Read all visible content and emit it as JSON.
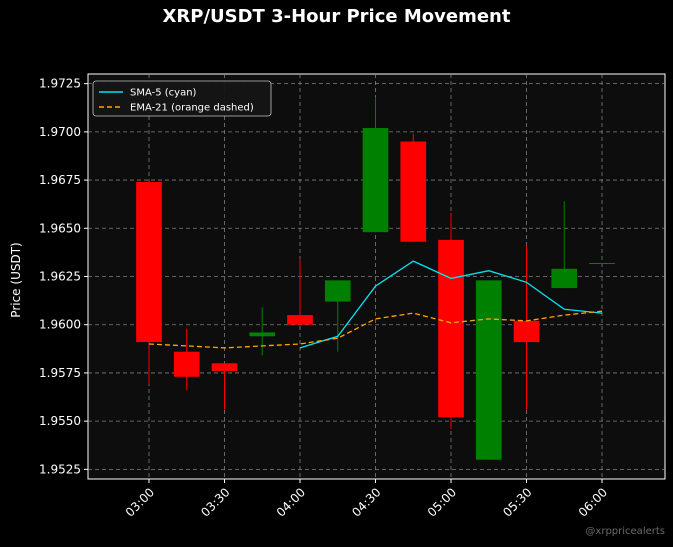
{
  "chart_data": {
    "type": "candlestick",
    "title": "XRP/USDT 3-Hour Price Movement",
    "xlabel": "",
    "ylabel": "Price (USDT)",
    "ylim": [
      1.952,
      1.973
    ],
    "y_ticks": [
      "1.9525",
      "1.9550",
      "1.9575",
      "1.9600",
      "1.9625",
      "1.9650",
      "1.9675",
      "1.9700",
      "1.9725"
    ],
    "x_ticks": [
      "03:00",
      "03:30",
      "04:00",
      "04:30",
      "05:00",
      "05:30",
      "06:00"
    ],
    "grid": true,
    "legend_position": "top-left",
    "candles": [
      {
        "time": "03:00",
        "open": 1.9674,
        "high": 1.9674,
        "low": 1.9569,
        "close": 1.9591
      },
      {
        "time": "03:15",
        "open": 1.9586,
        "high": 1.9598,
        "low": 1.9566,
        "close": 1.9573
      },
      {
        "time": "03:30",
        "open": 1.958,
        "high": 1.958,
        "low": 1.9556,
        "close": 1.9576
      },
      {
        "time": "03:45",
        "open": 1.9594,
        "high": 1.9609,
        "low": 1.9584,
        "close": 1.9596
      },
      {
        "time": "04:00",
        "open": 1.9605,
        "high": 1.9634,
        "low": 1.96,
        "close": 1.96
      },
      {
        "time": "04:15",
        "open": 1.9612,
        "high": 1.9623,
        "low": 1.9586,
        "close": 1.9623
      },
      {
        "time": "04:30",
        "open": 1.9648,
        "high": 1.9718,
        "low": 1.9648,
        "close": 1.9702
      },
      {
        "time": "04:45",
        "open": 1.9695,
        "high": 1.9699,
        "low": 1.9643,
        "close": 1.9643
      },
      {
        "time": "05:00",
        "open": 1.9644,
        "high": 1.9658,
        "low": 1.9546,
        "close": 1.9552
      },
      {
        "time": "05:15",
        "open": 1.953,
        "high": 1.9623,
        "low": 1.953,
        "close": 1.9623
      },
      {
        "time": "05:30",
        "open": 1.9602,
        "high": 1.9641,
        "low": 1.9556,
        "close": 1.9591
      },
      {
        "time": "05:45",
        "open": 1.9619,
        "high": 1.9664,
        "low": 1.9619,
        "close": 1.9629
      },
      {
        "time": "06:00",
        "open": 1.9632,
        "high": 1.9632,
        "low": 1.9632,
        "close": 1.9632
      }
    ],
    "series": [
      {
        "name": "SMA-5 (cyan)",
        "color": "#00e5ee",
        "style": "solid",
        "times": [
          "04:00",
          "04:15",
          "04:30",
          "04:45",
          "05:00",
          "05:15",
          "05:30",
          "05:45",
          "06:00"
        ],
        "values": [
          1.9588,
          1.9594,
          1.962,
          1.9633,
          1.9624,
          1.9628,
          1.9622,
          1.9608,
          1.9606
        ]
      },
      {
        "name": "EMA-21 (orange dashed)",
        "color": "#ffa500",
        "style": "dashed",
        "times": [
          "03:00",
          "03:15",
          "03:30",
          "03:45",
          "04:00",
          "04:15",
          "04:30",
          "04:45",
          "05:00",
          "05:15",
          "05:30",
          "05:45",
          "06:00"
        ],
        "values": [
          1.959,
          1.9589,
          1.9588,
          1.9589,
          1.959,
          1.9593,
          1.9603,
          1.9606,
          1.9601,
          1.9603,
          1.9602,
          1.9605,
          1.9607
        ]
      }
    ],
    "up_color": "#008000",
    "down_color": "#ff0000"
  },
  "watermark": "@xrppricealerts"
}
